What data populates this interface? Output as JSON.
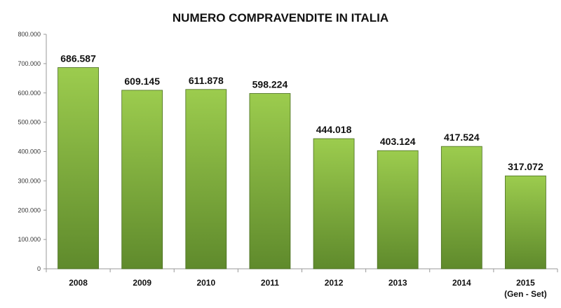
{
  "chart_data": {
    "type": "bar",
    "title": "NUMERO COMPRAVENDITE IN ITALIA",
    "xlabel": "",
    "ylabel": "",
    "categories": [
      "2008",
      "2009",
      "2010",
      "2011",
      "2012",
      "2013",
      "2014",
      "2015"
    ],
    "category_sublabels": [
      "",
      "",
      "",
      "",
      "",
      "",
      "",
      "(Gen - Set)"
    ],
    "values": [
      686587,
      609145,
      611878,
      598224,
      444018,
      403124,
      417524,
      317072
    ],
    "value_labels": [
      "686.587",
      "609.145",
      "611.878",
      "598.224",
      "444.018",
      "403.124",
      "417.524",
      "317.072"
    ],
    "ylim": [
      0,
      800000
    ],
    "yticks": [
      0,
      100000,
      200000,
      300000,
      400000,
      500000,
      600000,
      700000,
      800000
    ],
    "ytick_labels": [
      "0",
      "100.000",
      "200.000",
      "300.000",
      "400.000",
      "500.000",
      "600.000",
      "700.000",
      "800.000"
    ],
    "grid": false,
    "colors": {
      "bar_top": "#9ccc4e",
      "bar_bottom": "#5f8a2c",
      "bar_stroke": "#4a6e22",
      "axis": "#999999"
    }
  }
}
